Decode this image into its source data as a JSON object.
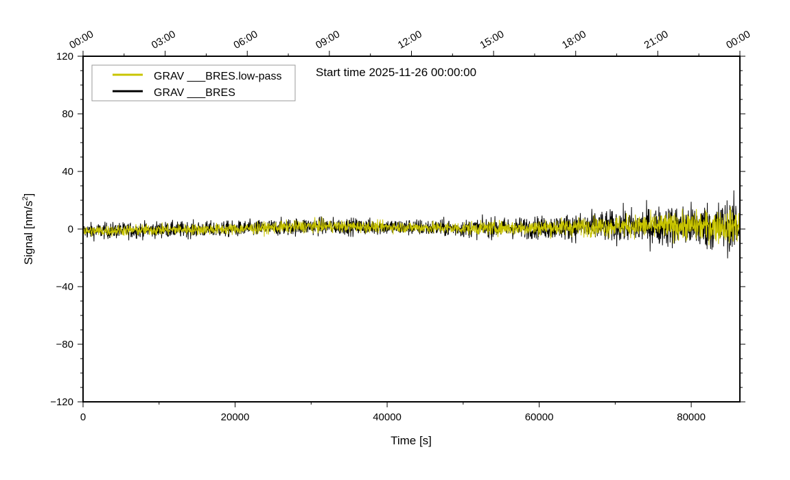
{
  "chart_data": {
    "type": "line",
    "title": "Start time 2025-11-26 00:00:00",
    "xlabel": "Time [s]",
    "ylabel": "Signal [nm/s²]",
    "xlim": [
      0,
      86400
    ],
    "ylim": [
      -120,
      120
    ],
    "x_ticks": [
      0,
      20000,
      40000,
      60000,
      80000
    ],
    "x_tick_labels": [
      "0",
      "20000",
      "40000",
      "60000",
      "80000"
    ],
    "y_ticks": [
      -120,
      -80,
      -40,
      0,
      40,
      80,
      120
    ],
    "y_tick_labels": [
      "−120",
      "−80",
      "−40",
      "0",
      "40",
      "80",
      "120"
    ],
    "top_axis_labels": [
      "00:00",
      "03:00",
      "06:00",
      "09:00",
      "12:00",
      "15:00",
      "18:00",
      "21:00",
      "00:00"
    ],
    "legend_position": "top-left",
    "series": [
      {
        "name": "GRAV ___BRES",
        "color": "#000000",
        "envelope_time": [
          0,
          10000,
          20000,
          30000,
          40000,
          50000,
          60000,
          70000,
          80000,
          86400
        ],
        "mean": [
          -1.5,
          -0.5,
          0,
          2,
          1.5,
          0.5,
          1,
          2,
          2,
          2
        ],
        "half_amplitude": [
          5,
          5,
          5,
          5.5,
          5,
          5.5,
          7,
          10,
          14,
          17
        ]
      },
      {
        "name": "GRAV ___BRES.low-pass",
        "color": "#c8c400",
        "envelope_time": [
          0,
          10000,
          20000,
          30000,
          40000,
          50000,
          60000,
          70000,
          80000,
          86400
        ],
        "mean": [
          -1.5,
          -0.5,
          0,
          2,
          1.5,
          0.5,
          1,
          2,
          2,
          2
        ],
        "half_amplitude": [
          3.5,
          3.5,
          3.5,
          4,
          3.5,
          4,
          5,
          6.5,
          9,
          11
        ]
      }
    ]
  }
}
